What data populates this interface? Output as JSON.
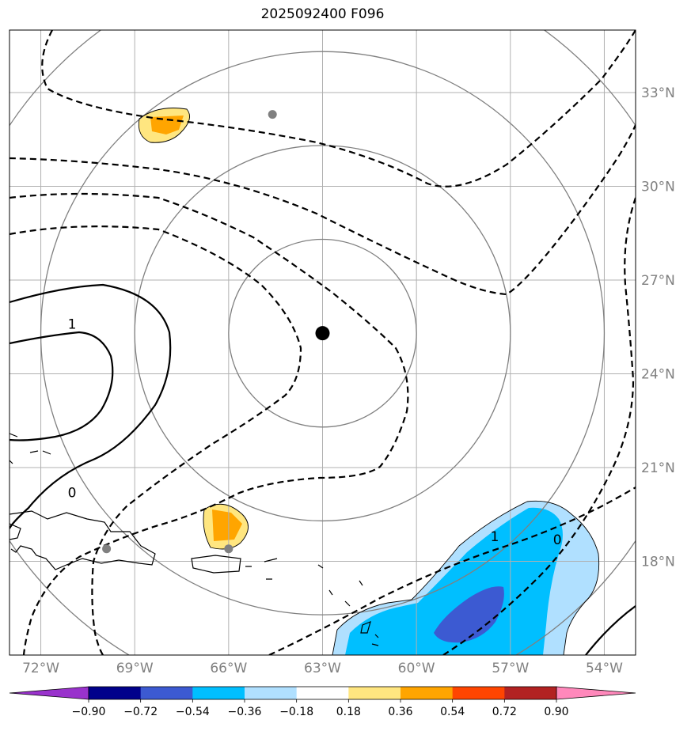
{
  "title": "2025092400 F096",
  "map": {
    "lon_min": -73.0,
    "lon_max": -53.0,
    "lat_min": 15.0,
    "lat_max": 35.0,
    "center": {
      "lon": -63.0,
      "lat": 25.3
    },
    "range_rings_deg": [
      3,
      6,
      9,
      12
    ],
    "gridline_color": "#b0b0b0",
    "ring_color": "#808080"
  },
  "lon_ticks": [
    {
      "value": -72,
      "label": "72°W"
    },
    {
      "value": -69,
      "label": "69°W"
    },
    {
      "value": -66,
      "label": "66°W"
    },
    {
      "value": -63,
      "label": "63°W"
    },
    {
      "value": -60,
      "label": "60°W"
    },
    {
      "value": -57,
      "label": "57°W"
    },
    {
      "value": -54,
      "label": "54°W"
    }
  ],
  "lat_ticks": [
    {
      "value": 33,
      "label": "33°N"
    },
    {
      "value": 30,
      "label": "30°N"
    },
    {
      "value": 27,
      "label": "27°N"
    },
    {
      "value": 24,
      "label": "24°N"
    },
    {
      "value": 21,
      "label": "21°N"
    },
    {
      "value": 18,
      "label": "18°N"
    }
  ],
  "contour_labels": [
    {
      "text": "1",
      "lon": -71.0,
      "lat": 25.6
    },
    {
      "text": "0",
      "lon": -71.0,
      "lat": 20.2
    },
    {
      "text": "1",
      "lon": -57.5,
      "lat": 18.8
    },
    {
      "text": "0",
      "lon": -55.5,
      "lat": 18.7
    }
  ],
  "station_dots": [
    {
      "lon": -64.6,
      "lat": 32.3
    },
    {
      "lon": -69.9,
      "lat": 18.4
    },
    {
      "lon": -66.0,
      "lat": 18.4
    }
  ],
  "colorbar": {
    "levels": [
      "−0.90",
      "−0.72",
      "−0.54",
      "−0.36",
      "−0.18",
      "0.18",
      "0.36",
      "0.54",
      "0.72",
      "0.90"
    ],
    "colors": [
      "#9932cc",
      "#00008b",
      "#3c5ad2",
      "#00bfff",
      "#b0e0ff",
      "#ffffff",
      "#ffe680",
      "#ffa500",
      "#ff4500",
      "#b22222",
      "#ff88bb"
    ]
  }
}
